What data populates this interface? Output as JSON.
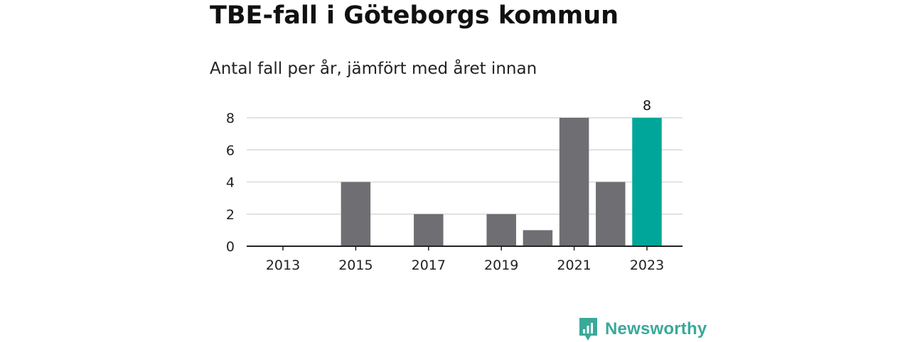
{
  "header": {
    "title": "TBE-fall i Göteborgs kommun",
    "subtitle": "Antal fall per år, jämfört med året innan"
  },
  "brand": {
    "name": "Newsworthy",
    "icon": "newsworthy-logo-icon"
  },
  "colors": {
    "bar": "#6e6e73",
    "highlight": "#00a699",
    "grid": "#d9d9d9",
    "axis": "#222222",
    "brand": "#3aa99a"
  },
  "chart_data": {
    "type": "bar",
    "title": "TBE-fall i Göteborgs kommun",
    "subtitle": "Antal fall per år, jämfört med året innan",
    "xlabel": "",
    "ylabel": "",
    "categories": [
      "2013",
      "2014",
      "2015",
      "2016",
      "2017",
      "2018",
      "2019",
      "2020",
      "2021",
      "2022",
      "2023"
    ],
    "x_tick_labels": [
      "2013",
      "2015",
      "2017",
      "2019",
      "2021",
      "2023"
    ],
    "values": [
      0,
      0,
      4,
      0,
      2,
      0,
      2,
      1,
      8,
      4,
      8
    ],
    "highlight_category": "2023",
    "data_labels": [
      {
        "category": "2023",
        "text": "8"
      }
    ],
    "y_ticks": [
      0,
      2,
      4,
      6,
      8
    ],
    "ylim": [
      0,
      8
    ],
    "grid": true,
    "legend": "none"
  }
}
